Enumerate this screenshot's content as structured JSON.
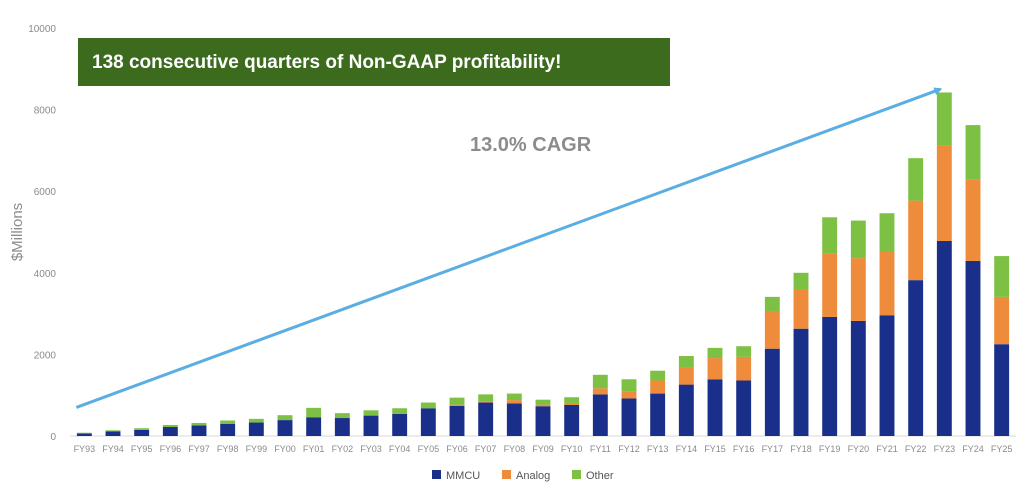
{
  "chart_data": {
    "type": "bar",
    "stacked": true,
    "title": "138 consecutive quarters of Non-GAAP profitability!",
    "annotation": "13.0% CAGR",
    "xlabel": "",
    "ylabel": "$Millions",
    "ylim": [
      0,
      10000
    ],
    "yticks": [
      0,
      2000,
      4000,
      6000,
      8000,
      10000
    ],
    "legend_position": "bottom",
    "categories": [
      "FY93",
      "FY94",
      "FY95",
      "FY96",
      "FY97",
      "FY98",
      "FY99",
      "FY00",
      "FY01",
      "FY02",
      "FY03",
      "FY04",
      "FY05",
      "FY06",
      "FY07",
      "FY08",
      "FY09",
      "FY10",
      "FY11",
      "FY12",
      "FY13",
      "FY14",
      "FY15",
      "FY16",
      "FY17",
      "FY18",
      "FY19",
      "FY20",
      "FY21",
      "FY22",
      "FY23",
      "FY24",
      "FY25"
    ],
    "series": [
      {
        "name": "MMCU",
        "color": "#1a2f8a",
        "values": [
          60,
          110,
          150,
          220,
          260,
          300,
          330,
          390,
          460,
          440,
          500,
          540,
          680,
          740,
          820,
          800,
          730,
          760,
          1020,
          920,
          1040,
          1260,
          1390,
          1360,
          2140,
          2630,
          2920,
          2820,
          2960,
          3820,
          4780,
          4290,
          2250
        ]
      },
      {
        "name": "Analog",
        "color": "#ef8c3b",
        "values": [
          0,
          0,
          0,
          0,
          0,
          0,
          0,
          0,
          0,
          0,
          0,
          0,
          0,
          30,
          30,
          80,
          40,
          50,
          150,
          180,
          320,
          430,
          520,
          580,
          900,
          950,
          1550,
          1540,
          1550,
          1950,
          2330,
          2000,
          1160
        ]
      },
      {
        "name": "Other",
        "color": "#7cc144",
        "values": [
          20,
          30,
          40,
          50,
          60,
          80,
          90,
          120,
          230,
          120,
          130,
          140,
          140,
          170,
          170,
          160,
          120,
          140,
          330,
          290,
          240,
          270,
          250,
          260,
          370,
          420,
          890,
          920,
          950,
          1040,
          1310,
          1330,
          1000
        ]
      }
    ],
    "trend_line": {
      "color": "#5aaee3",
      "from_category": "FY93",
      "from_value": 700,
      "to_category": "FY23",
      "to_value": 8500
    },
    "colors": {
      "banner_bg": "#3d6b1e",
      "axis": "#d9d9d9"
    }
  }
}
